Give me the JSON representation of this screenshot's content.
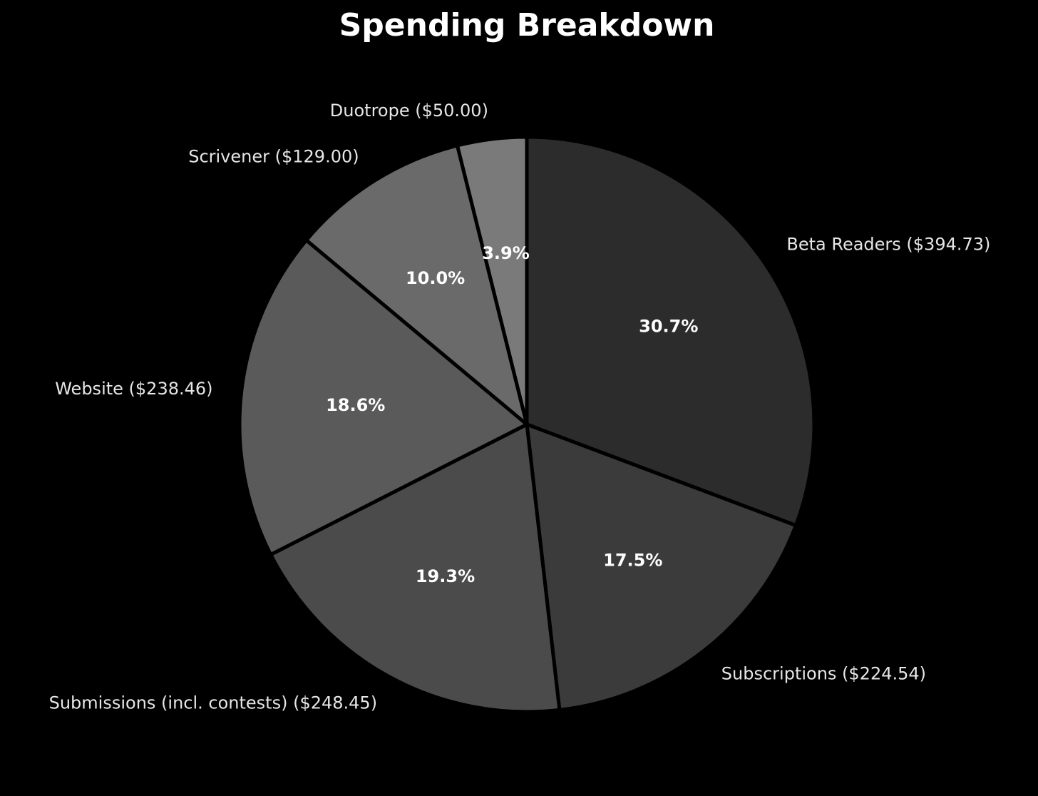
{
  "chart_data": {
    "type": "pie",
    "title": "Spending Breakdown",
    "start_angle_deg": 90,
    "direction": "clockwise",
    "edge_color": "#000000",
    "background": "#000000",
    "slices": [
      {
        "category": "Beta Readers",
        "label": "Beta Readers ($394.73)",
        "value": 394.73,
        "pct_label": "30.7%",
        "color": "#2c2c2c"
      },
      {
        "category": "Subscriptions",
        "label": "Subscriptions ($224.54)",
        "value": 224.54,
        "pct_label": "17.5%",
        "color": "#3b3b3b"
      },
      {
        "category": "Submissions (incl. contests)",
        "label": "Submissions (incl. contests) ($248.45)",
        "value": 248.45,
        "pct_label": "19.3%",
        "color": "#4b4b4b"
      },
      {
        "category": "Website",
        "label": "Website ($238.46)",
        "value": 238.46,
        "pct_label": "18.6%",
        "color": "#5a5a5a"
      },
      {
        "category": "Scrivener",
        "label": "Scrivener ($129.00)",
        "value": 129.0,
        "pct_label": "10.0%",
        "color": "#6a6a6a"
      },
      {
        "category": "Duotrope",
        "label": "Duotrope ($50.00)",
        "value": 50.0,
        "pct_label": "3.9%",
        "color": "#7a7a7a"
      }
    ]
  }
}
